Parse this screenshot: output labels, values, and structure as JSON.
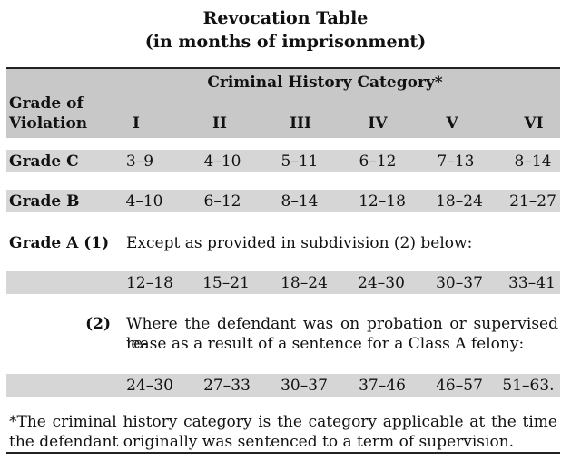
{
  "title": "Revocation Table",
  "subtitle": "(in months of imprisonment)",
  "header": {
    "group_label": "Criminal History Category*",
    "row_label_line1": "Grade of",
    "row_label_line2": "Violation",
    "categories": [
      "I",
      "II",
      "III",
      "IV",
      "V",
      "VI"
    ]
  },
  "rows": {
    "grade_c": {
      "label": "Grade C",
      "values": [
        "3–9",
        "4–10",
        "5–11",
        "6–12",
        "7–13",
        "8–14"
      ]
    },
    "grade_b": {
      "label": "Grade B",
      "values": [
        "4–10",
        "6–12",
        "8–14",
        "12–18",
        "18–24",
        "21–27"
      ]
    },
    "grade_a": {
      "label": "Grade A (1)",
      "sub1_text": "Except as provided in subdivision (2) below:",
      "sub1_values": [
        "12–18",
        "15–21",
        "18–24",
        "24–30",
        "30–37",
        "33–41"
      ],
      "sub2_label": "(2)",
      "sub2_line1": "Where the defendant was on probation or supervised re-",
      "sub2_line2": "lease as a result of a sentence for a Class A felony:",
      "sub2_values": [
        "24–30",
        "27–33",
        "30–37",
        "37–46",
        "46–57",
        "51–63."
      ]
    }
  },
  "footnote": {
    "line1": "*The criminal history category is the category applicable at the time",
    "line2": "the defendant originally was sentenced to a term of supervision."
  },
  "colors": {
    "header_bg": "#c8c8c8",
    "band_bg": "#d6d6d6",
    "rule": "#222222"
  }
}
